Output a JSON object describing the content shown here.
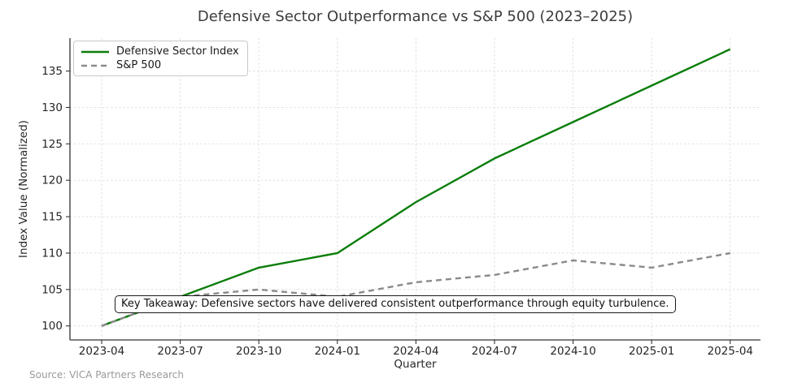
{
  "chart_data": {
    "type": "line",
    "title": "Defensive Sector Outperformance vs S&P 500 (2023–2025)",
    "xlabel": "Quarter",
    "ylabel": "Index Value (Normalized)",
    "categories": [
      "2023-04",
      "2023-07",
      "2023-10",
      "2024-01",
      "2024-04",
      "2024-07",
      "2024-10",
      "2025-01",
      "2025-04"
    ],
    "y_ticks": [
      100,
      105,
      110,
      115,
      120,
      125,
      130,
      135
    ],
    "ylim": [
      98.1,
      139.5
    ],
    "grid": true,
    "grid_style": "dashed",
    "legend_position": "upper-left",
    "series": [
      {
        "name": "Defensive Sector Index",
        "color": "#0a7d0a",
        "style": "solid",
        "dasharray": "none",
        "values": [
          100,
          104,
          108,
          110,
          117,
          123,
          128,
          133,
          138
        ]
      },
      {
        "name": "S&P 500",
        "color": "#8a8a8a",
        "style": "dashed",
        "dasharray": "7 5",
        "values": [
          100,
          104,
          105,
          104,
          106,
          107,
          109,
          108,
          110
        ]
      }
    ],
    "annotation": "Key Takeaway: Defensive sectors have delivered consistent outperformance through equity turbulence.",
    "source": "Source: VICA Partners Research"
  }
}
